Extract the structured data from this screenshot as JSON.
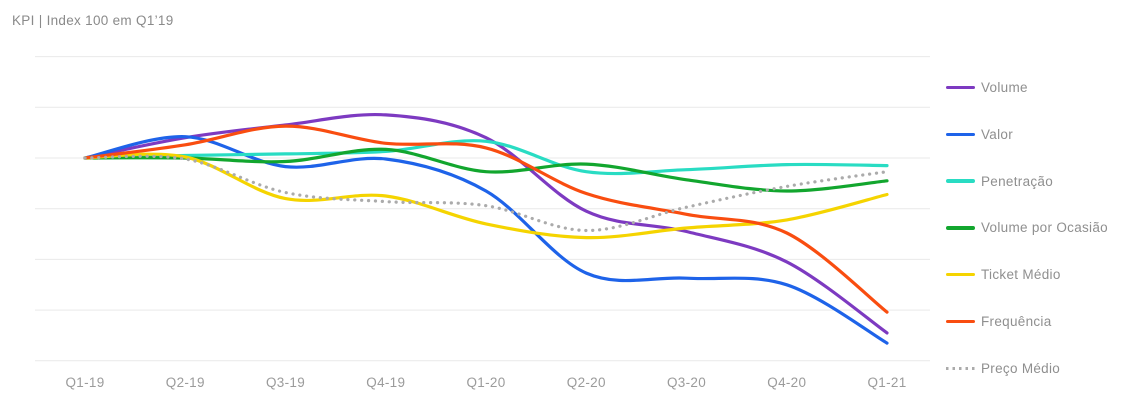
{
  "title": "KPI | Index 100 em Q1’19",
  "chart_data": {
    "type": "line",
    "title": "KPI | Index 100 em Q1’19",
    "categories": [
      "Q1-19",
      "Q2-19",
      "Q3-19",
      "Q4-19",
      "Q1-20",
      "Q2-20",
      "Q3-20",
      "Q4-20",
      "Q1-21"
    ],
    "series": [
      {
        "name": "Volume",
        "color": "#7D3AC1",
        "style": "solid",
        "values": [
          100,
          104.0,
          106.5,
          108.5,
          104.0,
          89.5,
          85.5,
          79.5,
          65.5
        ]
      },
      {
        "name": "Valor",
        "color": "#1E63E9",
        "style": "solid",
        "values": [
          100,
          104.2,
          98.3,
          99.8,
          93.5,
          77.3,
          76.3,
          75.0,
          63.5
        ]
      },
      {
        "name": "Penetração",
        "color": "#29DCC3",
        "style": "solid",
        "values": [
          100,
          100.5,
          100.8,
          101.3,
          103.3,
          97.3,
          97.7,
          98.7,
          98.5
        ]
      },
      {
        "name": "Volume por Ocasião",
        "color": "#12A62E",
        "style": "solid",
        "values": [
          100,
          100.0,
          99.3,
          101.7,
          97.3,
          98.8,
          95.7,
          93.5,
          95.5
        ]
      },
      {
        "name": "Ticket Médio",
        "color": "#F5D400",
        "style": "solid",
        "values": [
          100,
          100.2,
          92.0,
          92.5,
          87.0,
          84.3,
          86.2,
          87.8,
          92.8
        ]
      },
      {
        "name": "Frequência",
        "color": "#F94D10",
        "style": "solid",
        "values": [
          100,
          102.6,
          106.3,
          102.9,
          102.0,
          93.0,
          88.9,
          85.2,
          69.6
        ]
      },
      {
        "name": "Preço Médio",
        "color": "#ABABAB",
        "style": "dotted",
        "values": [
          100,
          99.8,
          93.2,
          91.4,
          90.6,
          85.7,
          90.3,
          94.4,
          97.3
        ]
      }
    ],
    "baseline_value": 100,
    "ylim": [
      60,
      120
    ],
    "y_gridline_step": 10,
    "y_axis_labels_visible": false,
    "grid": "horizontal",
    "legend_position": "right",
    "line_smoothing": true
  }
}
